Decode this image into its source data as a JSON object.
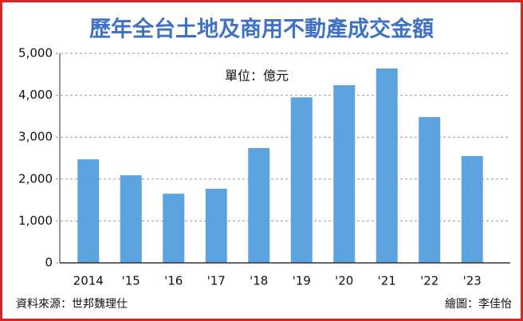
{
  "chart_data": {
    "type": "bar",
    "title": "歷年全台土地及商用不動產成交金額",
    "unit_label": "單位：億元",
    "source": "資料來源：世邦魏理仕",
    "credit": "繪圖：李佳怡",
    "categories": [
      "2014",
      "'15",
      "'16",
      "'17",
      "'18",
      "'19",
      "'20",
      "'21",
      "'22",
      "'23"
    ],
    "values": [
      2470,
      2090,
      1650,
      1770,
      2740,
      3950,
      4240,
      4640,
      3480,
      2550
    ],
    "color": "#5ca3e0",
    "ylim": [
      0,
      5000
    ],
    "yticks": [
      0,
      {
        "value": 1000,
        "label": "1,000"
      },
      {
        "value": 2000,
        "label": "2,000"
      },
      {
        "value": 3000,
        "label": "3,000"
      },
      {
        "value": 4000,
        "label": "4,000"
      },
      {
        "value": 5000,
        "label": "5,000"
      }
    ],
    "grid": true
  }
}
